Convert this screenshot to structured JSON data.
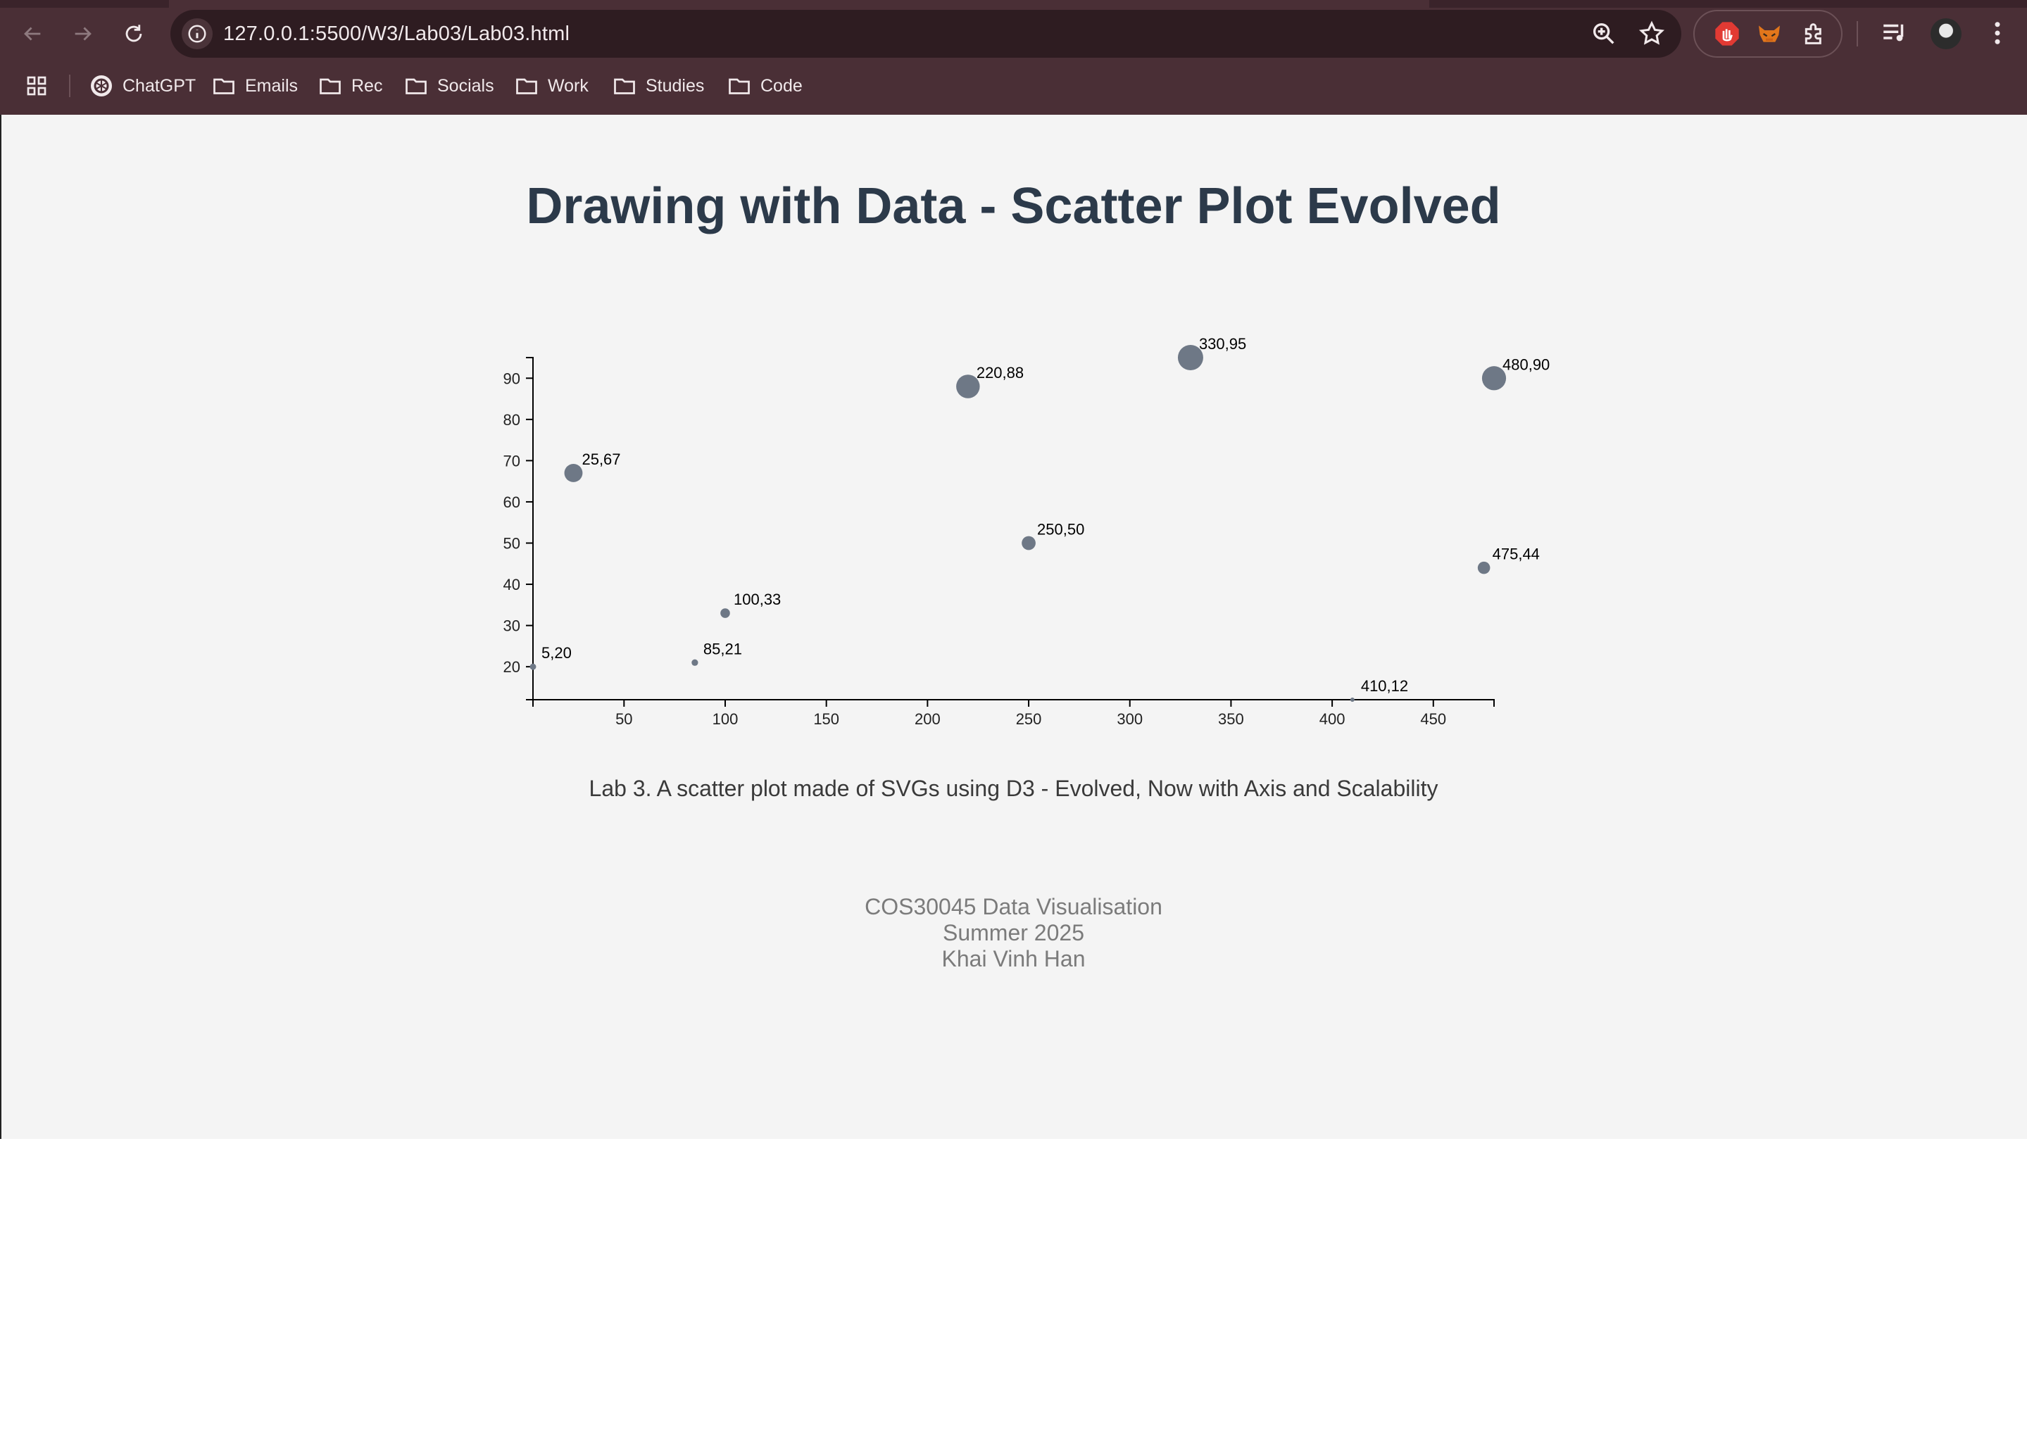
{
  "browser": {
    "url": "127.0.0.1:5500/W3/Lab03/Lab03.html",
    "bookmarks": [
      {
        "label": "ChatGPT",
        "icon": "chatgpt-icon"
      },
      {
        "label": "Emails",
        "icon": "folder-icon"
      },
      {
        "label": "Rec",
        "icon": "folder-icon"
      },
      {
        "label": "Socials",
        "icon": "folder-icon"
      },
      {
        "label": "Work",
        "icon": "folder-icon"
      },
      {
        "label": "Studies",
        "icon": "folder-icon"
      },
      {
        "label": "Code",
        "icon": "folder-icon"
      }
    ],
    "colors": {
      "frame": "#4a2f36",
      "omnibox": "#2e1c21",
      "text": "#f1e9eb"
    }
  },
  "page": {
    "title": "Drawing with Data - Scatter Plot Evolved",
    "caption": "Lab 3. A scatter plot made of SVGs using D3 - Evolved, Now with Axis and Scalability",
    "footer": [
      "COS30045 Data Visualisation",
      "Summer 2025",
      "Khai Vinh Han"
    ],
    "colors": {
      "background": "#f4f4f4",
      "title": "#2c3a4a",
      "point": "#6e7886"
    }
  },
  "chart_data": {
    "type": "scatter",
    "title": "",
    "xlabel": "",
    "ylabel": "",
    "xlim": [
      5,
      480
    ],
    "ylim": [
      12,
      95
    ],
    "x_ticks": [
      50,
      100,
      150,
      200,
      250,
      300,
      350,
      400,
      450
    ],
    "y_ticks": [
      20,
      30,
      40,
      50,
      60,
      70,
      80,
      90
    ],
    "grid": false,
    "point_color": "#6e7886",
    "point_labels": true,
    "points": [
      {
        "x": 5,
        "y": 20,
        "label": "5,20"
      },
      {
        "x": 480,
        "y": 90,
        "label": "480,90"
      },
      {
        "x": 250,
        "y": 50,
        "label": "250,50"
      },
      {
        "x": 100,
        "y": 33,
        "label": "100,33"
      },
      {
        "x": 330,
        "y": 95,
        "label": "330,95"
      },
      {
        "x": 410,
        "y": 12,
        "label": "410,12"
      },
      {
        "x": 475,
        "y": 44,
        "label": "475,44"
      },
      {
        "x": 25,
        "y": 67,
        "label": "25,67"
      },
      {
        "x": 85,
        "y": 21,
        "label": "85,21"
      },
      {
        "x": 220,
        "y": 88,
        "label": "220,88"
      }
    ]
  }
}
